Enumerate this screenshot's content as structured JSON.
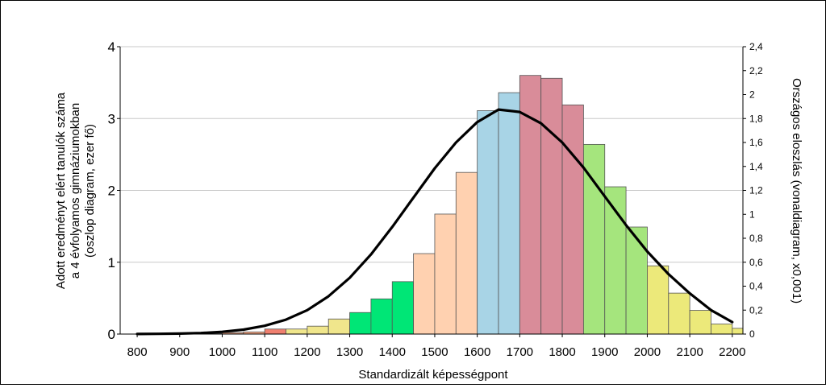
{
  "chart_data": {
    "type": "bar",
    "xlabel": "Standardizált képességpont",
    "ylabel_left": [
      "Adott eredményt elért tanulók száma",
      "a 4 évfolyamos gimnáziumokban",
      "(oszlop diagram, ezer fő)"
    ],
    "ylabel_right": "Országos eloszlás (vonaldiagram, x0,001)",
    "xlim": [
      760,
      2225
    ],
    "xticks": [
      "800",
      "900",
      "1000",
      "1100",
      "1200",
      "1300",
      "1400",
      "1500",
      "1600",
      "1700",
      "1800",
      "1900",
      "2000",
      "2100",
      "2200"
    ],
    "ylim_left": [
      0,
      4
    ],
    "yticks_left": [
      "0",
      "1",
      "2",
      "3",
      "4"
    ],
    "ylim_right": [
      0,
      2.4
    ],
    "yticks_right": [
      "0",
      "0,2",
      "0,4",
      "0,6",
      "0,8",
      "1",
      "1,2",
      "1,4",
      "1,6",
      "1,8",
      "2",
      "2,2",
      "2,4"
    ],
    "grid": "horizontal",
    "bar_width": 50,
    "bars": [
      {
        "x": 825,
        "value": 0.005,
        "color": "#f4a582"
      },
      {
        "x": 875,
        "value": 0.005,
        "color": "#f4a582"
      },
      {
        "x": 925,
        "value": 0.005,
        "color": "#f4a582"
      },
      {
        "x": 975,
        "value": 0.01,
        "color": "#f4a582"
      },
      {
        "x": 1025,
        "value": 0.02,
        "color": "#f4a582"
      },
      {
        "x": 1075,
        "value": 0.03,
        "color": "#f4a582"
      },
      {
        "x": 1125,
        "value": 0.07,
        "color": "#f08070"
      },
      {
        "x": 1175,
        "value": 0.07,
        "color": "#f0e68c"
      },
      {
        "x": 1225,
        "value": 0.11,
        "color": "#f0e68c"
      },
      {
        "x": 1275,
        "value": 0.21,
        "color": "#f0e68c"
      },
      {
        "x": 1325,
        "value": 0.3,
        "color": "#00e676"
      },
      {
        "x": 1375,
        "value": 0.49,
        "color": "#00e676"
      },
      {
        "x": 1425,
        "value": 0.73,
        "color": "#00e676"
      },
      {
        "x": 1475,
        "value": 1.12,
        "color": "#ffd1b0"
      },
      {
        "x": 1525,
        "value": 1.67,
        "color": "#ffd1b0"
      },
      {
        "x": 1575,
        "value": 2.25,
        "color": "#ffd1b0"
      },
      {
        "x": 1625,
        "value": 3.11,
        "color": "#a8d4e6"
      },
      {
        "x": 1675,
        "value": 3.36,
        "color": "#a8d4e6"
      },
      {
        "x": 1725,
        "value": 3.6,
        "color": "#d98c99"
      },
      {
        "x": 1775,
        "value": 3.56,
        "color": "#d98c99"
      },
      {
        "x": 1825,
        "value": 3.19,
        "color": "#d98c99"
      },
      {
        "x": 1875,
        "value": 2.64,
        "color": "#a5e57d"
      },
      {
        "x": 1925,
        "value": 2.05,
        "color": "#a5e57d"
      },
      {
        "x": 1975,
        "value": 1.49,
        "color": "#a5e57d"
      },
      {
        "x": 2025,
        "value": 0.95,
        "color": "#ece97a"
      },
      {
        "x": 2075,
        "value": 0.57,
        "color": "#ece97a"
      },
      {
        "x": 2125,
        "value": 0.33,
        "color": "#ece97a"
      },
      {
        "x": 2175,
        "value": 0.14,
        "color": "#ece97a"
      },
      {
        "x": 2225,
        "value": 0.08,
        "color": "#ece97a"
      }
    ],
    "line": {
      "color": "#000000",
      "x": [
        800,
        850,
        900,
        950,
        1000,
        1050,
        1100,
        1150,
        1200,
        1250,
        1300,
        1350,
        1400,
        1450,
        1500,
        1550,
        1600,
        1650,
        1700,
        1750,
        1800,
        1850,
        1900,
        1950,
        2000,
        2050,
        2100,
        2150,
        2200
      ],
      "y": [
        0.001,
        0.002,
        0.004,
        0.009,
        0.019,
        0.037,
        0.069,
        0.12,
        0.2,
        0.315,
        0.47,
        0.665,
        0.895,
        1.14,
        1.385,
        1.6,
        1.77,
        1.875,
        1.855,
        1.76,
        1.6,
        1.39,
        1.15,
        0.91,
        0.69,
        0.5,
        0.34,
        0.2,
        0.1
      ]
    }
  }
}
